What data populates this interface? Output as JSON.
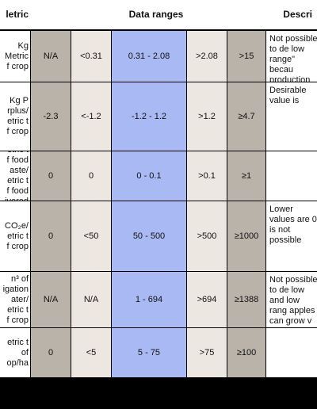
{
  "header": {
    "metric": "letric",
    "ranges": "Data ranges",
    "description": "Descri"
  },
  "rows": [
    {
      "metric": "Kg\nMetric\nf crop",
      "cols": [
        "N/A",
        "<0.31",
        "0.31 - 2.08",
        ">2.08",
        ">15"
      ],
      "desc": "Not possible to de low range\" becau production is pos fertilizer addition"
    },
    {
      "metric": "Kg P\nrplus/\netric t\nf crop",
      "cols": [
        "-2.3",
        "<-1.2",
        "-1.2 - 1.2",
        ">1.2",
        "≥4.7"
      ],
      "desc": "Desirable value is"
    },
    {
      "metric": "etric t\nf food\naste/\netric t\nf food\nivered",
      "cols": [
        "0",
        "0",
        "0 - 0.1",
        ">0.1",
        "≥1"
      ],
      "desc": ""
    },
    {
      "metric": "CO₂e/\netric t\nf crop",
      "cols": [
        "0",
        "<50",
        "50 - 500",
        ">500",
        "≥1000"
      ],
      "desc": "Lower values are 0 is not possible"
    },
    {
      "metric": "n³ of\nigation\nater/\netric t\nf crop",
      "cols": [
        "N/A",
        "N/A",
        "1 - 694",
        ">694",
        "≥1388"
      ],
      "desc": "Not possible to de low and low rang apples can grow v irrigation"
    },
    {
      "metric": "etric t\nof\nop/ha",
      "cols": [
        "0",
        "<5",
        "5 - 75",
        ">75",
        "≥100"
      ],
      "desc": ""
    }
  ]
}
